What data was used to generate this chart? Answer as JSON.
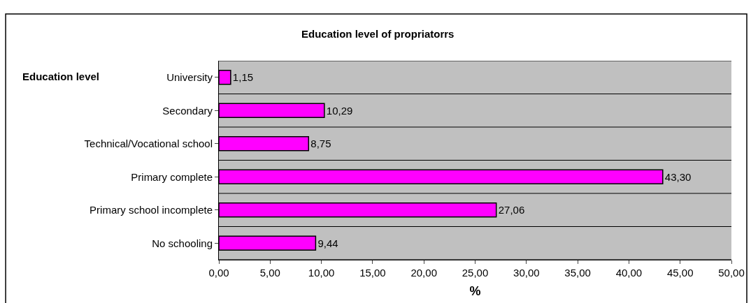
{
  "chart_data": {
    "type": "bar",
    "orientation": "horizontal",
    "title": "Education level of propriatorrs",
    "xlabel": "%",
    "ylabel": "Education level",
    "categories": [
      "University",
      "Secondary",
      "Technical/Vocational school",
      "Primary complete",
      "Primary school incomplete",
      "No schooling"
    ],
    "values": [
      1.15,
      10.29,
      8.75,
      43.3,
      27.06,
      9.44
    ],
    "value_labels": [
      "1,15",
      "10,29",
      "8,75",
      "43,30",
      "27,06",
      "9,44"
    ],
    "color": "#ff00ff",
    "xlim": [
      0,
      50
    ],
    "xticks": [
      {
        "value": 0,
        "label": "0,00"
      },
      {
        "value": 5,
        "label": "5,00"
      },
      {
        "value": 10,
        "label": "10,00"
      },
      {
        "value": 15,
        "label": "15,00"
      },
      {
        "value": 20,
        "label": "20,00"
      },
      {
        "value": 25,
        "label": "25,00"
      },
      {
        "value": 30,
        "label": "30,00"
      },
      {
        "value": 35,
        "label": "35,00"
      },
      {
        "value": 40,
        "label": "40,00"
      },
      {
        "value": 45,
        "label": "45,00"
      },
      {
        "value": 50,
        "label": "50,00"
      }
    ],
    "grid": "y",
    "legend": false
  }
}
